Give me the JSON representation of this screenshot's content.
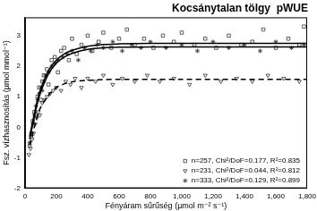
{
  "chart_data": {
    "type": "scatter",
    "title": "Kocsánytalan tölgy  pWUE",
    "x_label": "Fényáram sűrűség (µmol m⁻² s⁻¹)",
    "y_label": "Fsz. vízhasznosítás (µmol mmol⁻¹)",
    "xlim": [
      0,
      1800
    ],
    "xticks": [
      0,
      200,
      400,
      600,
      800,
      1000,
      1200,
      1400,
      1600,
      1800
    ],
    "ylim": [
      -2,
      3.6
    ],
    "yticks": [
      -2,
      -1,
      0,
      1,
      2,
      3
    ],
    "grid": false,
    "legend": "lower right",
    "series": [
      {
        "name": "n=257, Chi²/DoF=0.177, R²=0.835",
        "color": "#333333",
        "marker": "square",
        "x": [
          30,
          40,
          50,
          60,
          70,
          80,
          90,
          100,
          110,
          120,
          140,
          150,
          170,
          190,
          210,
          230,
          250,
          280,
          300,
          330,
          360,
          400,
          430,
          470,
          500,
          550,
          600,
          650,
          700,
          760,
          820,
          880,
          950,
          1000,
          1080,
          1150,
          1220,
          1300,
          1380,
          1450,
          1520,
          1600,
          1680,
          1750,
          1780
        ],
        "values": [
          -0.6,
          -0.3,
          0.2,
          0.5,
          0.4,
          1.0,
          1.3,
          0.9,
          1.5,
          1.7,
          1.9,
          1.4,
          2.2,
          2.3,
          1.8,
          2.5,
          2.6,
          2.2,
          2.9,
          2.4,
          2.7,
          3.0,
          2.5,
          2.8,
          3.1,
          2.6,
          2.9,
          3.2,
          2.7,
          2.9,
          2.6,
          3.0,
          2.8,
          3.1,
          2.7,
          2.9,
          2.6,
          3.0,
          2.7,
          2.8,
          3.2,
          2.6,
          2.9,
          2.7,
          3.3
        ],
        "fit": {
          "line_style": "solid",
          "x": [
            30,
            50,
            75,
            100,
            150,
            200,
            250,
            300,
            400,
            500,
            600,
            800,
            1000,
            1200,
            1400,
            1600,
            1800
          ],
          "values": [
            -0.3,
            0.2,
            0.8,
            1.25,
            1.85,
            2.2,
            2.4,
            2.52,
            2.65,
            2.71,
            2.73,
            2.75,
            2.75,
            2.75,
            2.75,
            2.75,
            2.75
          ]
        }
      },
      {
        "name": "n=231, Chi²/DoF=0.044, R²=0.812",
        "color": "#333333",
        "marker": "triangle-down",
        "x": [
          25,
          35,
          45,
          55,
          65,
          75,
          85,
          95,
          110,
          125,
          140,
          160,
          180,
          200,
          230,
          260,
          290,
          320,
          360,
          400,
          450,
          500,
          560,
          620,
          700,
          780,
          860,
          950,
          1050,
          1150,
          1250,
          1350,
          1450,
          1550,
          1650,
          1750
        ],
        "values": [
          -0.9,
          -0.7,
          -0.4,
          -0.2,
          0.1,
          0.3,
          0.5,
          0.4,
          0.8,
          0.9,
          1.0,
          1.1,
          1.2,
          1.3,
          1.2,
          1.5,
          1.4,
          1.6,
          1.3,
          1.6,
          1.5,
          1.7,
          1.4,
          1.6,
          1.5,
          1.7,
          1.5,
          1.6,
          1.4,
          1.7,
          1.5,
          1.6,
          1.5,
          1.7,
          1.6,
          1.5
        ],
        "fit": {
          "line_style": "dashed",
          "x": [
            30,
            50,
            75,
            100,
            150,
            200,
            250,
            300,
            400,
            500,
            600,
            800,
            1000,
            1200,
            1400,
            1600,
            1800
          ],
          "values": [
            -0.6,
            -0.2,
            0.3,
            0.65,
            1.05,
            1.3,
            1.42,
            1.49,
            1.54,
            1.56,
            1.57,
            1.57,
            1.57,
            1.57,
            1.57,
            1.57,
            1.57
          ]
        }
      },
      {
        "name": "n=333, Chi²/DoF=0.129, R²=0.899",
        "color": "#333333",
        "marker": "asterisk",
        "x": [
          30,
          40,
          50,
          60,
          70,
          80,
          90,
          100,
          110,
          120,
          130,
          150,
          170,
          190,
          210,
          240,
          270,
          300,
          340,
          380,
          420,
          460,
          500,
          560,
          620,
          680,
          740,
          800,
          900,
          1000,
          1100,
          1200,
          1300,
          1400,
          1500,
          1600,
          1700,
          1780
        ],
        "values": [
          -0.5,
          -0.2,
          0.1,
          0.4,
          0.7,
          0.9,
          1.1,
          1.3,
          1.2,
          1.5,
          1.7,
          1.8,
          2.0,
          2.1,
          2.2,
          2.3,
          2.4,
          2.5,
          2.2,
          2.6,
          2.5,
          2.7,
          2.6,
          2.8,
          2.5,
          2.7,
          2.6,
          2.8,
          2.6,
          2.7,
          2.5,
          2.8,
          2.6,
          2.7,
          2.5,
          2.8,
          2.6,
          2.7
        ],
        "fit": {
          "line_style": "solid",
          "x": [
            30,
            50,
            75,
            100,
            150,
            200,
            250,
            300,
            400,
            500,
            600,
            800,
            1000,
            1200,
            1400,
            1600,
            1800
          ],
          "values": [
            -0.4,
            0.1,
            0.7,
            1.15,
            1.75,
            2.1,
            2.3,
            2.42,
            2.55,
            2.6,
            2.62,
            2.63,
            2.63,
            2.63,
            2.63,
            2.63,
            2.63
          ]
        }
      }
    ]
  }
}
